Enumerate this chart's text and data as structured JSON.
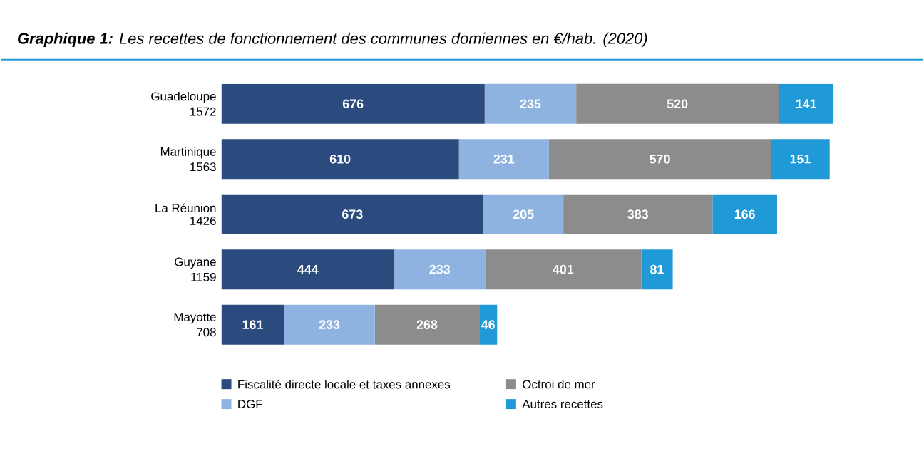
{
  "chart_data": {
    "type": "bar",
    "orientation": "horizontal",
    "stacked": true,
    "title": "**Graphique 1:** Les recettes de fonctionnement des communes domiennes en €/hab. (2020)",
    "categories": [
      "Guadeloupe",
      "Martinique",
      "La Réunion",
      "Guyane",
      "Mayotte"
    ],
    "totals": [
      "1572",
      "1563",
      "1426",
      "1159",
      "708"
    ],
    "series": [
      {
        "name": "Fiscalité directe locale et taxes annexes",
        "color": "#2b4a7e",
        "values": [
          676,
          610,
          673,
          444,
          161
        ]
      },
      {
        "name": "DGF",
        "color": "#8fb3e0",
        "values": [
          235,
          231,
          205,
          233,
          233
        ]
      },
      {
        "name": "Octroi de mer",
        "color": "#8c8c8c",
        "values": [
          520,
          570,
          383,
          401,
          268
        ]
      },
      {
        "name": "Autres recettes",
        "color": "#1f9ad6",
        "values": [
          141,
          151,
          166,
          81,
          46
        ]
      }
    ],
    "data_labels": true,
    "legend": "bottom"
  }
}
